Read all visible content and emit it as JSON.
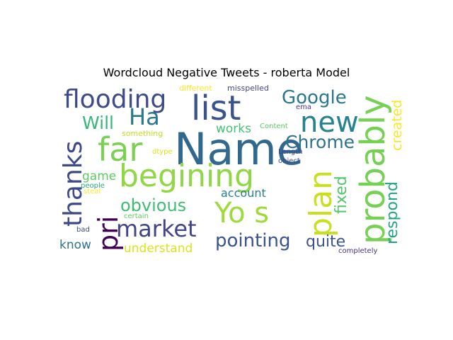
{
  "title": "Wordcloud Negative Tweets - roberta Model",
  "words": [
    {
      "text": "Name",
      "color": "#31688e"
    },
    {
      "text": "begining",
      "color": "#8fd744"
    },
    {
      "text": "list",
      "color": "#3b528b"
    },
    {
      "text": "flooding",
      "color": "#3e4a89"
    },
    {
      "text": "far",
      "color": "#7ad151"
    },
    {
      "text": "Ha",
      "color": "#2a788e"
    },
    {
      "text": "Will",
      "color": "#35b779"
    },
    {
      "text": "thanks",
      "color": "#3e4989"
    },
    {
      "text": "pri",
      "color": "#440154"
    },
    {
      "text": "market",
      "color": "#414487"
    },
    {
      "text": "obvious",
      "color": "#3fbc73"
    },
    {
      "text": "game",
      "color": "#5ec962"
    },
    {
      "text": "know",
      "color": "#2c728e"
    },
    {
      "text": "understand",
      "color": "#dde318"
    },
    {
      "text": "pointing",
      "color": "#3b528b"
    },
    {
      "text": "Yo s",
      "color": "#a0da39"
    },
    {
      "text": "plan",
      "color": "#c8e020"
    },
    {
      "text": "probably",
      "color": "#75d054"
    },
    {
      "text": "new",
      "color": "#26828e"
    },
    {
      "text": "Google",
      "color": "#2a768e"
    },
    {
      "text": "Chrome",
      "color": "#2c728e"
    },
    {
      "text": "works",
      "color": "#44bf70"
    },
    {
      "text": "account",
      "color": "#287d8e"
    },
    {
      "text": "fixed",
      "color": "#52c569"
    },
    {
      "text": "quite",
      "color": "#3b528b"
    },
    {
      "text": "respond",
      "color": "#20a386"
    },
    {
      "text": "created",
      "color": "#fde725"
    },
    {
      "text": "different",
      "color": "#fde725"
    },
    {
      "text": "misspelled",
      "color": "#404688"
    },
    {
      "text": "ema",
      "color": "#443983"
    },
    {
      "text": "something",
      "color": "#bddf26"
    },
    {
      "text": "Content",
      "color": "#5ec962"
    },
    {
      "text": "dtype",
      "color": "#dde318"
    },
    {
      "text": "Length",
      "color": "#414487"
    },
    {
      "text": "object",
      "color": "#3e4a89"
    },
    {
      "text": "people",
      "color": "#22a884"
    },
    {
      "text": "steal",
      "color": "#fde725"
    },
    {
      "text": "certain",
      "color": "#5ec962"
    },
    {
      "text": "bad",
      "color": "#3e4a89"
    },
    {
      "text": "completely",
      "color": "#46327e"
    }
  ]
}
